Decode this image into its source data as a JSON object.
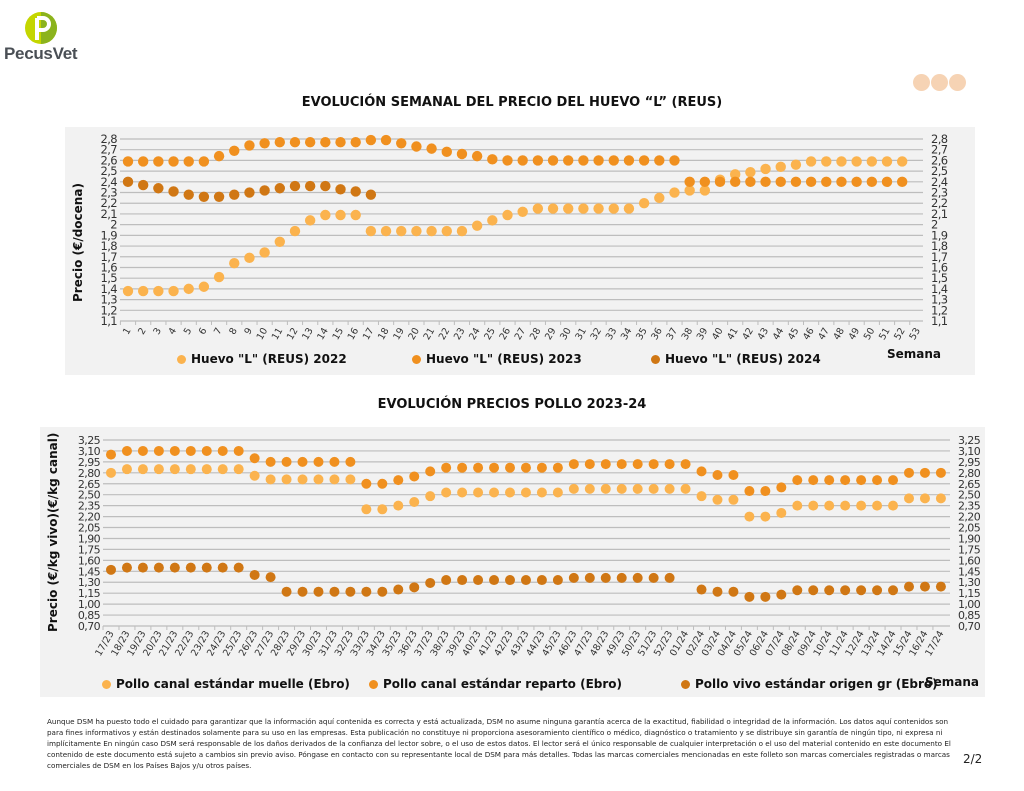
{
  "header": {
    "logo_text": "PecusVet",
    "brand_colors": {
      "green": "#9cc31b",
      "grey": "#4a4f55"
    }
  },
  "colors": {
    "light": "#fbb34e",
    "mid": "#f0901f",
    "dark": "#d07714",
    "background": "#f2f2f2"
  },
  "chart_data": [
    {
      "type": "scatter",
      "title": "EVOLUCIÓN SEMANAL DEL PRECIO DEL HUEVO “L” (REUS)",
      "ylabel": "Precio (€/docena)",
      "xlabel": "Semana",
      "ylim": [
        1.1,
        2.8
      ],
      "yticks": [
        "1,1",
        "1,2",
        "1,3",
        "1,4",
        "1,5",
        "1,6",
        "1,7",
        "1,8",
        "1,9",
        "2",
        "2,1",
        "2,2",
        "2,3",
        "2,4",
        "2,5",
        "2,6",
        "2,7",
        "2,8"
      ],
      "grid": true,
      "legend": "bottom",
      "categories": [
        "1",
        "2",
        "3",
        "4",
        "5",
        "6",
        "7",
        "8",
        "9",
        "10",
        "11",
        "12",
        "13",
        "14",
        "15",
        "16",
        "17",
        "18",
        "19",
        "20",
        "21",
        "22",
        "23",
        "24",
        "25",
        "26",
        "27",
        "28",
        "29",
        "30",
        "31",
        "32",
        "33",
        "34",
        "35",
        "36",
        "37",
        "38",
        "39",
        "40",
        "41",
        "42",
        "43",
        "44",
        "45",
        "46",
        "47",
        "48",
        "49",
        "50",
        "51",
        "52",
        "53"
      ],
      "series": [
        {
          "name": "Huevo \"L\" (REUS) 2022",
          "color": "#fbb34e",
          "values": [
            1.38,
            1.38,
            1.38,
            1.38,
            1.4,
            1.42,
            1.51,
            1.64,
            1.69,
            1.74,
            1.84,
            1.94,
            2.04,
            2.09,
            2.09,
            2.09,
            1.94,
            1.94,
            1.94,
            1.94,
            1.94,
            1.94,
            1.94,
            1.99,
            2.04,
            2.09,
            2.12,
            2.15,
            2.15,
            2.15,
            2.15,
            2.15,
            2.15,
            2.15,
            2.2,
            2.25,
            2.3,
            2.32,
            2.32,
            2.42,
            2.47,
            2.49,
            2.52,
            2.54,
            2.56,
            2.59,
            2.59,
            2.59,
            2.59,
            2.59,
            2.59,
            2.59
          ]
        },
        {
          "name": "Huevo \"L\" (REUS) 2023",
          "color": "#f0901f",
          "values": [
            2.59,
            2.59,
            2.59,
            2.59,
            2.59,
            2.59,
            2.64,
            2.69,
            2.74,
            2.76,
            2.77,
            2.77,
            2.77,
            2.77,
            2.77,
            2.77,
            2.79,
            2.79,
            2.76,
            2.73,
            2.71,
            2.68,
            2.66,
            2.64,
            2.61,
            2.6,
            2.6,
            2.6,
            2.6,
            2.6,
            2.6,
            2.6,
            2.6,
            2.6,
            2.6,
            2.6,
            2.6,
            2.4,
            2.4,
            2.4,
            2.4,
            2.4,
            2.4,
            2.4,
            2.4,
            2.4,
            2.4,
            2.4,
            2.4,
            2.4,
            2.4,
            2.4
          ]
        },
        {
          "name": "Huevo \"L\" (REUS) 2024",
          "color": "#d07714",
          "values": [
            2.4,
            2.37,
            2.34,
            2.31,
            2.28,
            2.26,
            2.26,
            2.28,
            2.3,
            2.32,
            2.34,
            2.36,
            2.36,
            2.36,
            2.33,
            2.31,
            2.28
          ]
        }
      ]
    },
    {
      "type": "scatter",
      "title": "EVOLUCIÓN PRECIOS POLLO 2023-24",
      "ylabel": "Precio (€/kg vivo)(€/kg canal)",
      "xlabel": "Semana",
      "ylim": [
        0.7,
        3.25
      ],
      "yticks": [
        "0,70",
        "0,85",
        "1,00",
        "1,15",
        "1,30",
        "1,45",
        "1,60",
        "1,75",
        "1,90",
        "2,05",
        "2,20",
        "2,35",
        "2,50",
        "2,65",
        "2,80",
        "2,95",
        "3,10",
        "3,25"
      ],
      "grid": true,
      "legend": "bottom",
      "categories": [
        "17/23",
        "18/23",
        "19/23",
        "20/23",
        "21/23",
        "22/23",
        "23/23",
        "24/23",
        "25/23",
        "26/23",
        "27/23",
        "28/23",
        "29/23",
        "30/23",
        "31/23",
        "32/23",
        "33/23",
        "34/23",
        "35/23",
        "36/23",
        "37/23",
        "38/23",
        "39/23",
        "40/23",
        "41/23",
        "42/23",
        "43/23",
        "44/23",
        "45/23",
        "46/23",
        "47/23",
        "48/23",
        "49/23",
        "50/23",
        "51/23",
        "52/23",
        "01/24",
        "02/24",
        "03/24",
        "04/24",
        "05/24",
        "06/24",
        "07/24",
        "08/24",
        "09/24",
        "10/24",
        "11/24",
        "12/24",
        "13/24",
        "14/24",
        "15/24",
        "16/24",
        "17/24"
      ],
      "series": [
        {
          "name": "Pollo canal estándar muelle (Ebro)",
          "color": "#fbb34e",
          "values": [
            2.8,
            2.85,
            2.85,
            2.85,
            2.85,
            2.85,
            2.85,
            2.85,
            2.85,
            2.76,
            2.71,
            2.71,
            2.71,
            2.71,
            2.71,
            2.71,
            2.3,
            2.3,
            2.35,
            2.4,
            2.48,
            2.53,
            2.53,
            2.53,
            2.53,
            2.53,
            2.53,
            2.53,
            2.53,
            2.58,
            2.58,
            2.58,
            2.58,
            2.58,
            2.58,
            2.58,
            2.58,
            2.48,
            2.43,
            2.43,
            2.2,
            2.2,
            2.25,
            2.35,
            2.35,
            2.35,
            2.35,
            2.35,
            2.35,
            2.35,
            2.45,
            2.45,
            2.45
          ]
        },
        {
          "name": "Pollo canal estándar reparto (Ebro)",
          "color": "#f0901f",
          "values": [
            3.05,
            3.1,
            3.1,
            3.1,
            3.1,
            3.1,
            3.1,
            3.1,
            3.1,
            3.0,
            2.95,
            2.95,
            2.95,
            2.95,
            2.95,
            2.95,
            2.65,
            2.65,
            2.7,
            2.75,
            2.82,
            2.87,
            2.87,
            2.87,
            2.87,
            2.87,
            2.87,
            2.87,
            2.87,
            2.92,
            2.92,
            2.92,
            2.92,
            2.92,
            2.92,
            2.92,
            2.92,
            2.82,
            2.77,
            2.77,
            2.55,
            2.55,
            2.6,
            2.7,
            2.7,
            2.7,
            2.7,
            2.7,
            2.7,
            2.7,
            2.8,
            2.8,
            2.8
          ]
        },
        {
          "name": "Pollo vivo estándar origen gr (Ebro)",
          "color": "#d07714",
          "values": [
            1.47,
            1.5,
            1.5,
            1.5,
            1.5,
            1.5,
            1.5,
            1.5,
            1.5,
            1.4,
            1.37,
            1.17,
            1.17,
            1.17,
            1.17,
            1.17,
            1.17,
            1.17,
            1.2,
            1.23,
            1.29,
            1.33,
            1.33,
            1.33,
            1.33,
            1.33,
            1.33,
            1.33,
            1.33,
            1.36,
            1.36,
            1.36,
            1.36,
            1.36,
            1.36,
            1.36,
            null,
            1.2,
            1.17,
            1.17,
            1.1,
            1.1,
            1.13,
            1.19,
            1.19,
            1.19,
            1.19,
            1.19,
            1.19,
            1.19,
            1.24,
            1.24,
            1.24
          ]
        }
      ]
    }
  ],
  "disclaimer": "Aunque DSM ha puesto todo el cuidado para garantizar que la información aquí contenida es correcta y está actualizada, DSM no asume ninguna garantía acerca de la exactitud, fiabilidad o integridad de la información. Los datos aquí contenidos son para fines informativos y están destinados solamente para su uso en las empresas. Esta publicación no constituye ni proporciona asesoramiento científico o médico, diagnóstico o tratamiento y se distribuye sin garantía de ningún tipo, ni expresa ni implícitamente En ningún caso DSM será responsable de los daños derivados de la confianza del lector sobre, o el uso de estos datos. El lector será el único responsable de cualquier interpretación o el uso del material contenido en este documento El contenido de este documento está sujeto a cambios sin previo aviso. Póngase en contacto con su representante local de DSM para más detalles. Todas las marcas comerciales mencionadas en este folleto son marcas comerciales registradas o marcas comerciales de DSM en los Países Bajos y/u otros países.",
  "page_number": "2/2"
}
